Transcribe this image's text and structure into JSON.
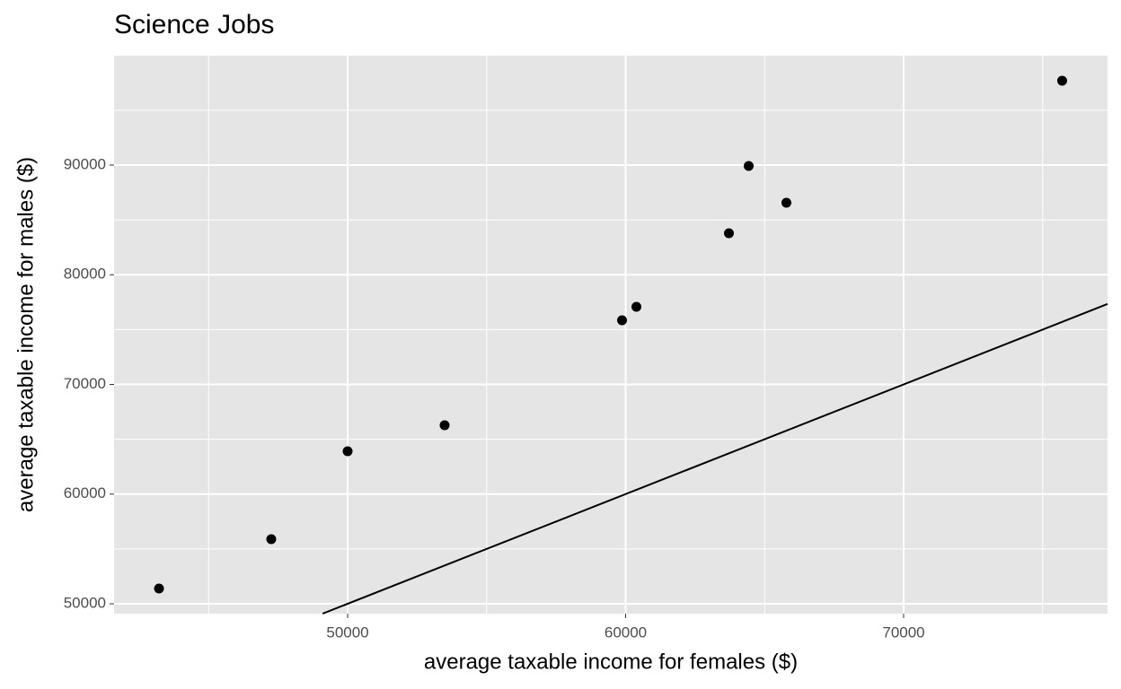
{
  "chart_data": {
    "type": "scatter",
    "title": "Science Jobs",
    "x_label": "average taxable income for females ($)",
    "y_label": "average taxable income for males ($)",
    "x": [
      43215,
      47253,
      50000,
      53489,
      59871,
      60388,
      63715,
      64426,
      65783,
      75702
    ],
    "y": [
      51391,
      55890,
      63906,
      66278,
      75849,
      77076,
      83783,
      89918,
      86564,
      97689
    ],
    "color": "#000000",
    "reference_line": {
      "slope": 1,
      "intercept": 0
    },
    "xlim": [
      41599,
      77334
    ],
    "ylim": [
      49100,
      99980
    ],
    "xticks": [
      50000,
      60000,
      70000
    ],
    "yticks": [
      50000,
      60000,
      70000,
      80000,
      90000
    ],
    "grid": true
  }
}
